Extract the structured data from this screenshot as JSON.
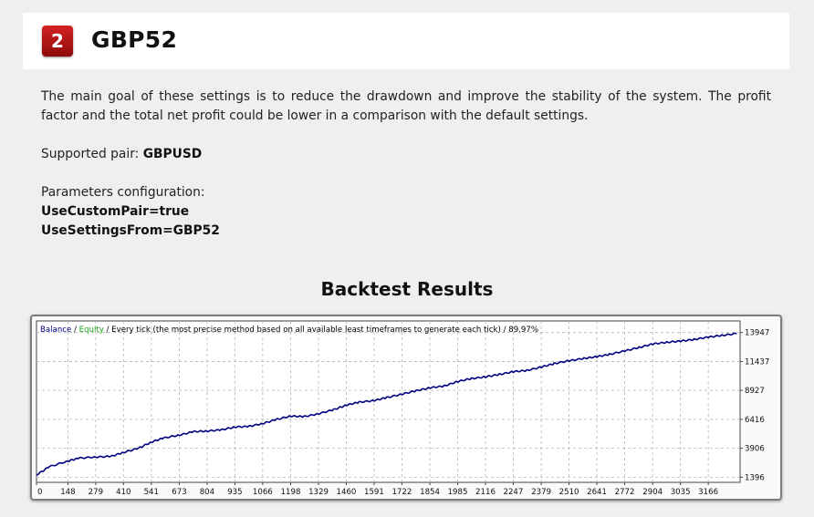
{
  "header": {
    "badge_number": "2",
    "title": "GBP52"
  },
  "intro": "The main goal of these settings is to reduce the drawdown and improve the stability of the system. The profit factor and the total net profit could be lower in a comparison with the default settings.",
  "supported_pair": {
    "label": "Supported pair:",
    "value": "GBPUSD"
  },
  "parameters": {
    "label": "Parameters configuration:",
    "lines": [
      "UseCustomPair=true",
      "UseSettingsFrom=GBP52"
    ]
  },
  "section_title": "Backtest Results",
  "legend": {
    "balance": "Balance",
    "sep1": " / ",
    "equity": "Equity",
    "rest": " / Every tick (the most precise method based on all available least timeframes to generate each tick) / 89.97%"
  },
  "colors": {
    "balance": "#000080",
    "equity": "#1fa51f",
    "badge": "#c01818",
    "grid": "#b5b5b5"
  },
  "chart_data": {
    "type": "line",
    "x_ticks": [
      0,
      148,
      279,
      410,
      541,
      673,
      804,
      935,
      1066,
      1198,
      1329,
      1460,
      1591,
      1722,
      1854,
      1985,
      2116,
      2247,
      2379,
      2510,
      2641,
      2772,
      2904,
      3035,
      3166
    ],
    "y_ticks": [
      1396,
      3906,
      6416,
      8927,
      11437,
      13947
    ],
    "xlim": [
      0,
      3316
    ],
    "ylim": [
      950,
      14950
    ],
    "grid": true,
    "series": [
      {
        "name": "Balance",
        "x": [
          0,
          60,
          148,
          200,
          279,
          350,
          410,
          480,
          541,
          600,
          673,
          740,
          804,
          870,
          935,
          1000,
          1066,
          1130,
          1198,
          1260,
          1329,
          1400,
          1460,
          1520,
          1591,
          1650,
          1722,
          1790,
          1854,
          1920,
          1985,
          2050,
          2116,
          2180,
          2247,
          2310,
          2379,
          2440,
          2510,
          2580,
          2641,
          2700,
          2772,
          2840,
          2904,
          2970,
          3035,
          3100,
          3166,
          3230,
          3300
        ],
        "y": [
          1600,
          2300,
          2800,
          3050,
          3150,
          3200,
          3550,
          3900,
          4450,
          4800,
          5050,
          5350,
          5400,
          5500,
          5750,
          5800,
          6050,
          6400,
          6700,
          6650,
          6900,
          7250,
          7650,
          7900,
          8050,
          8300,
          8600,
          8900,
          9150,
          9300,
          9700,
          9950,
          10100,
          10300,
          10550,
          10650,
          10950,
          11250,
          11500,
          11700,
          11850,
          12050,
          12350,
          12650,
          12950,
          13100,
          13200,
          13350,
          13550,
          13700,
          13850
        ]
      }
    ]
  }
}
